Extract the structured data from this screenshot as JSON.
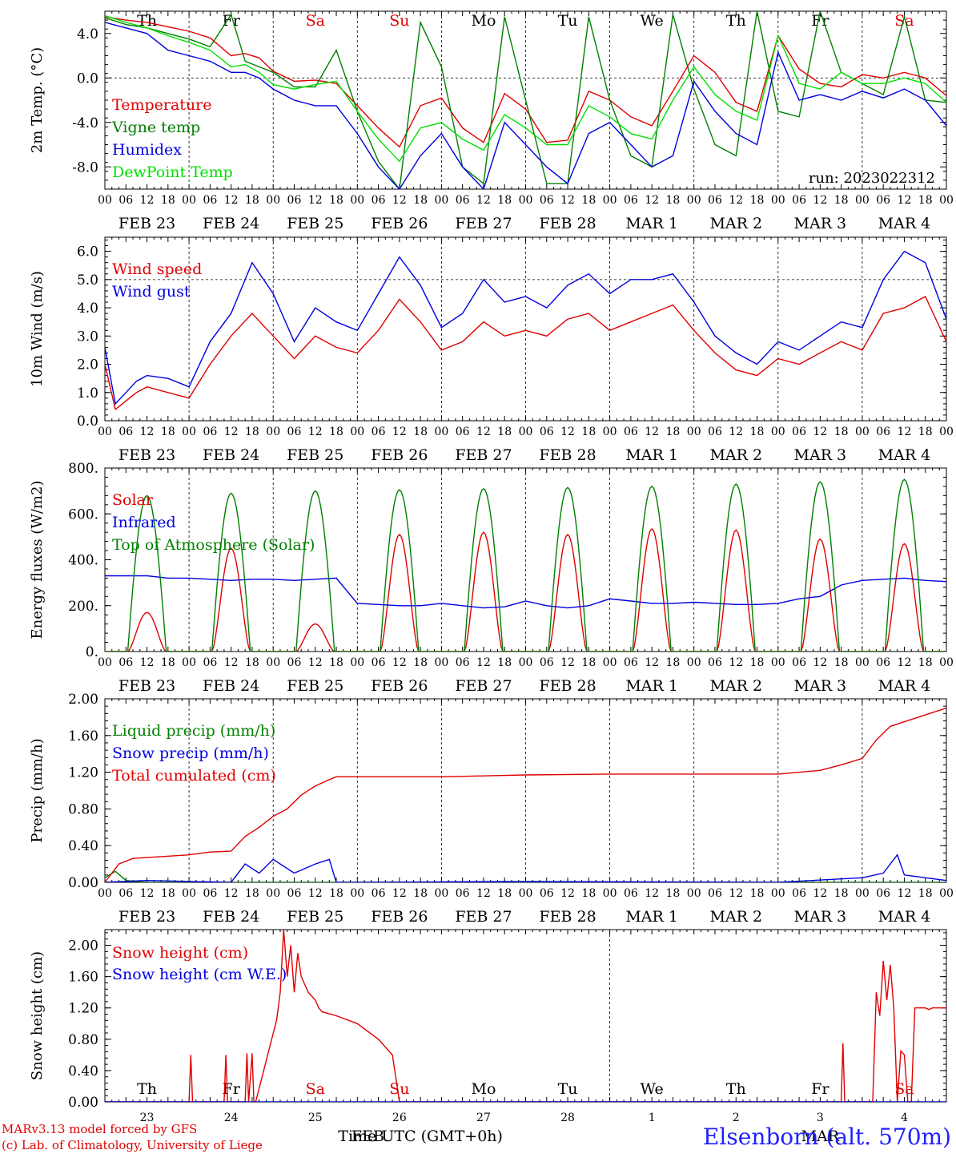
{
  "run_label": "run: 2023022312",
  "credits": {
    "line1": "MARv3.13 model forced by GFS",
    "line2": "(c) Lab. of Climatology, University of Liege"
  },
  "station": "Elsenborn (alt. 570m)",
  "bottom_axis": {
    "xlabel": "Time UTC (GMT+0h)",
    "month_feb": "FEB",
    "month_mar": "MAR",
    "day_numbers": [
      "23",
      "24",
      "25",
      "26",
      "27",
      "28",
      "1",
      "2",
      "3",
      "4"
    ]
  },
  "hour_ticks": [
    "00",
    "06",
    "12",
    "18"
  ],
  "day_labels": [
    "FEB 23",
    "FEB 24",
    "FEB 25",
    "FEB 26",
    "FEB 27",
    "FEB 28",
    "MAR  1",
    "MAR  2",
    "MAR  3",
    "MAR  4"
  ],
  "weekdays": [
    "Th",
    "Fr",
    "Sa",
    "Su",
    "Mo",
    "Tu",
    "We",
    "Th",
    "Fr",
    "Sa"
  ],
  "weekday_colors": [
    "#000000",
    "#000000",
    "#e00000",
    "#e00000",
    "#000000",
    "#000000",
    "#000000",
    "#000000",
    "#000000",
    "#e00000"
  ],
  "colors": {
    "red": "#e00000",
    "green": "#008000",
    "blue": "#0000e0",
    "light_green": "#00e000",
    "axis": "#000000"
  },
  "chart_data": [
    {
      "type": "line",
      "ylabel": "2m Temp. (°C)",
      "ylim": [
        -10,
        6
      ],
      "yticks": [
        4,
        0,
        -4,
        -8
      ],
      "ytick_labels": [
        "4.0",
        "0.0",
        "-4.0",
        "-8.0"
      ],
      "reference_line": 0,
      "x_unit_hours": 240,
      "series": [
        {
          "name": "Temperature",
          "color": "#e00000",
          "x": [
            0,
            6,
            12,
            18,
            24,
            30,
            36,
            40,
            44,
            48,
            54,
            60,
            66,
            72,
            78,
            84,
            90,
            96,
            102,
            108,
            114,
            120,
            126,
            132,
            138,
            144,
            150,
            156,
            162,
            168,
            174,
            180,
            186,
            192,
            198,
            204,
            210,
            216,
            222,
            228,
            234,
            240
          ],
          "y": [
            5.5,
            5.2,
            5,
            4.6,
            4.2,
            3.6,
            2,
            2.2,
            1.8,
            0.6,
            -0.3,
            -0.2,
            -0.5,
            -2.5,
            -4.5,
            -6.2,
            -2.5,
            -1.8,
            -4.5,
            -5.8,
            -1.4,
            -2.8,
            -5.8,
            -5.6,
            -1.2,
            -2,
            -3.5,
            -4.3,
            -1.2,
            2,
            0.5,
            -2.2,
            -3,
            3.8,
            0.8,
            -0.5,
            -0.8,
            0.3,
            0,
            0.5,
            0,
            -1.6
          ]
        },
        {
          "name": "Vigne temp",
          "color": "#008000",
          "x": [
            0,
            6,
            12,
            18,
            24,
            30,
            36,
            40,
            44,
            48,
            54,
            60,
            66,
            72,
            78,
            84,
            90,
            96,
            102,
            108,
            114,
            120,
            126,
            132,
            138,
            144,
            150,
            156,
            162,
            168,
            174,
            180,
            186,
            192,
            198,
            204,
            210,
            216,
            222,
            228,
            234,
            240
          ],
          "y": [
            5.4,
            4.8,
            4.5,
            4,
            3.5,
            2.8,
            5.7,
            1.5,
            1,
            0.5,
            -0.8,
            -0.8,
            2.5,
            -3,
            -7.5,
            -10,
            5,
            1,
            -8,
            -9.5,
            5.5,
            -2,
            -9.5,
            -9.5,
            5.5,
            -2,
            -7,
            -8,
            5.7,
            -1,
            -6,
            -7,
            6,
            -3,
            -3.5,
            6,
            0.5,
            -0.5,
            -1.5,
            5.5,
            -2,
            -2.2
          ]
        },
        {
          "name": "Humidex",
          "color": "#0000e0",
          "x": [
            0,
            6,
            12,
            18,
            24,
            30,
            36,
            40,
            44,
            48,
            54,
            60,
            66,
            72,
            78,
            84,
            90,
            96,
            102,
            108,
            114,
            120,
            126,
            132,
            138,
            144,
            150,
            156,
            162,
            168,
            174,
            180,
            186,
            192,
            198,
            204,
            210,
            216,
            222,
            228,
            234,
            240
          ],
          "y": [
            5,
            4.5,
            4,
            2.5,
            2,
            1.5,
            0.5,
            0.5,
            0,
            -1,
            -2,
            -2.5,
            -2.5,
            -5,
            -8,
            -10,
            -7,
            -5,
            -8,
            -10,
            -4,
            -6,
            -8,
            -9.5,
            -5,
            -4,
            -6,
            -8,
            -7,
            -0.3,
            -3,
            -5,
            -6,
            2.3,
            -2,
            -1.5,
            -2,
            -1.2,
            -1.8,
            -1,
            -2,
            -4.3
          ]
        },
        {
          "name": "DewPoint Temp",
          "color": "#00e000",
          "x": [
            0,
            6,
            12,
            18,
            24,
            30,
            36,
            40,
            44,
            48,
            54,
            60,
            66,
            72,
            78,
            84,
            90,
            96,
            102,
            108,
            114,
            120,
            126,
            132,
            138,
            144,
            150,
            156,
            162,
            168,
            174,
            180,
            186,
            192,
            198,
            204,
            210,
            216,
            222,
            228,
            234,
            240
          ],
          "y": [
            5.6,
            5,
            4.5,
            3.8,
            3.2,
            2.5,
            1,
            1.2,
            0.5,
            -0.6,
            -1,
            -0.6,
            -0.3,
            -3,
            -5.5,
            -7.5,
            -4.5,
            -4,
            -5.5,
            -6.5,
            -3.3,
            -4.5,
            -6,
            -6,
            -2.5,
            -3.5,
            -5,
            -5.5,
            -2,
            1,
            -1.5,
            -3,
            -3.8,
            3.8,
            -0.5,
            -1,
            0.5,
            -0.5,
            -0.5,
            0,
            -0.5,
            -2.2
          ]
        }
      ]
    },
    {
      "type": "line",
      "ylabel": "10m Wind (m/s)",
      "ylim": [
        0,
        6.5
      ],
      "yticks": [
        0,
        1,
        2,
        3,
        4,
        5,
        6
      ],
      "ytick_labels": [
        "0.0",
        "1.0",
        "2.0",
        "3.0",
        "4.0",
        "5.0",
        "6.0"
      ],
      "reference_line": 5,
      "series": [
        {
          "name": "Wind speed",
          "color": "#e00000",
          "x": [
            0,
            3,
            6,
            9,
            12,
            18,
            24,
            30,
            36,
            42,
            48,
            54,
            60,
            66,
            72,
            78,
            84,
            90,
            96,
            102,
            108,
            114,
            120,
            126,
            132,
            138,
            144,
            150,
            156,
            162,
            168,
            174,
            180,
            186,
            192,
            198,
            204,
            210,
            216,
            222,
            228,
            234,
            240
          ],
          "y": [
            2,
            0.4,
            0.7,
            1,
            1.2,
            1,
            0.8,
            2,
            3,
            3.8,
            3,
            2.2,
            3,
            2.6,
            2.4,
            3.2,
            4.3,
            3.5,
            2.5,
            2.8,
            3.5,
            3,
            3.2,
            3,
            3.6,
            3.8,
            3.2,
            3.5,
            3.8,
            4.1,
            3.2,
            2.4,
            1.8,
            1.6,
            2.2,
            2,
            2.4,
            2.8,
            2.5,
            3.8,
            4,
            4.4,
            2.8
          ]
        },
        {
          "name": "Wind gust",
          "color": "#0000e0",
          "x": [
            0,
            3,
            6,
            9,
            12,
            18,
            24,
            30,
            36,
            42,
            48,
            54,
            60,
            66,
            72,
            78,
            84,
            90,
            96,
            102,
            108,
            114,
            120,
            126,
            132,
            138,
            144,
            150,
            156,
            162,
            168,
            174,
            180,
            186,
            192,
            198,
            204,
            210,
            216,
            222,
            228,
            234,
            240
          ],
          "y": [
            2.6,
            0.6,
            1,
            1.4,
            1.6,
            1.5,
            1.2,
            2.8,
            3.8,
            5.6,
            4.5,
            2.8,
            4,
            3.5,
            3.2,
            4.5,
            5.8,
            4.8,
            3.3,
            3.8,
            5,
            4.2,
            4.4,
            4,
            4.8,
            5.2,
            4.5,
            5,
            5,
            5.2,
            4.2,
            3,
            2.4,
            2,
            2.8,
            2.5,
            3,
            3.5,
            3.3,
            5,
            6,
            5.6,
            3.6
          ]
        }
      ]
    },
    {
      "type": "line",
      "ylabel": "Energy fluxes (W/m2)",
      "ylim": [
        0,
        800
      ],
      "yticks": [
        0,
        200,
        400,
        600,
        800
      ],
      "ytick_labels": [
        "0.",
        "200.",
        "400.",
        "600.",
        "800."
      ],
      "series": [
        {
          "name": "Solar",
          "color": "#e00000",
          "day_peaks": [
            170,
            450,
            120,
            510,
            520,
            510,
            535,
            530,
            490,
            470
          ]
        },
        {
          "name": "Infrared",
          "color": "#0000e0",
          "x": [
            0,
            6,
            12,
            18,
            24,
            30,
            36,
            42,
            48,
            54,
            60,
            66,
            72,
            78,
            84,
            90,
            96,
            102,
            108,
            114,
            120,
            126,
            132,
            138,
            144,
            150,
            156,
            162,
            168,
            174,
            180,
            186,
            192,
            198,
            204,
            210,
            216,
            222,
            228,
            234,
            240
          ],
          "y": [
            330,
            330,
            330,
            320,
            320,
            315,
            310,
            315,
            315,
            310,
            315,
            320,
            210,
            205,
            200,
            200,
            210,
            200,
            190,
            195,
            220,
            200,
            190,
            200,
            230,
            220,
            210,
            210,
            215,
            210,
            205,
            205,
            210,
            230,
            240,
            290,
            310,
            315,
            320,
            310,
            305
          ]
        },
        {
          "name": "Top of Atmosphere (Solar)",
          "color": "#008000",
          "day_peaks": [
            680,
            690,
            700,
            705,
            710,
            715,
            720,
            730,
            740,
            750
          ]
        }
      ]
    },
    {
      "type": "line",
      "ylabel": "Precip (mm/h)",
      "ylim": [
        0,
        2
      ],
      "yticks": [
        0,
        0.4,
        0.8,
        1.2,
        1.6,
        2.0
      ],
      "ytick_labels": [
        "0.00",
        "0.40",
        "0.80",
        "1.20",
        "1.60",
        "2.00"
      ],
      "series": [
        {
          "name": "Liquid precip (mm/h)",
          "color": "#008000",
          "x": [
            0,
            3,
            6,
            12,
            24,
            48,
            240
          ],
          "y": [
            0.05,
            0.12,
            0.02,
            0,
            0,
            0,
            0
          ]
        },
        {
          "name": "Snow precip (mm/h)",
          "color": "#0000e0",
          "x": [
            0,
            12,
            36,
            40,
            44,
            48,
            54,
            60,
            64,
            66,
            72,
            120,
            192,
            216,
            222,
            226,
            228,
            234,
            240
          ],
          "y": [
            0,
            0.02,
            0,
            0.2,
            0.1,
            0.25,
            0.1,
            0.2,
            0.25,
            0,
            0,
            0.01,
            0,
            0.05,
            0.1,
            0.3,
            0.08,
            0.05,
            0.02
          ]
        },
        {
          "name": "Total cumulated (cm)",
          "color": "#e00000",
          "x": [
            0,
            4,
            8,
            12,
            24,
            30,
            36,
            40,
            44,
            48,
            52,
            56,
            60,
            64,
            66,
            72,
            96,
            120,
            144,
            168,
            192,
            204,
            210,
            216,
            220,
            224,
            228,
            232,
            236,
            240
          ],
          "y": [
            0,
            0.2,
            0.26,
            0.27,
            0.3,
            0.33,
            0.34,
            0.5,
            0.6,
            0.72,
            0.8,
            0.95,
            1.05,
            1.12,
            1.15,
            1.15,
            1.15,
            1.17,
            1.18,
            1.18,
            1.18,
            1.22,
            1.28,
            1.35,
            1.55,
            1.7,
            1.75,
            1.8,
            1.85,
            1.9
          ]
        }
      ]
    },
    {
      "type": "line",
      "ylabel": "Snow height (cm)",
      "ylim": [
        0,
        2.2
      ],
      "yticks": [
        0,
        0.4,
        0.8,
        1.2,
        1.6,
        2.0
      ],
      "ytick_labels": [
        "0.00",
        "0.40",
        "0.80",
        "1.20",
        "1.60",
        "2.00"
      ],
      "series": [
        {
          "name": "Snow height (cm)",
          "color": "#e00000",
          "x": [
            0,
            24,
            24.5,
            25,
            34,
            34.5,
            35,
            40,
            40.5,
            41,
            42,
            42.5,
            43,
            49,
            50,
            51,
            52,
            53,
            54,
            55,
            56,
            57,
            58,
            59,
            60,
            61,
            62,
            66,
            72,
            78,
            82,
            84,
            84.5,
            85,
            210,
            210.5,
            211,
            212,
            212.5,
            213,
            219,
            220,
            221,
            222,
            223,
            224,
            225,
            226,
            227,
            228,
            229,
            230,
            231,
            232,
            233,
            234,
            235,
            236,
            237,
            237.5,
            238,
            239,
            240
          ],
          "y": [
            0,
            0,
            0.6,
            0,
            0,
            0.6,
            0,
            0,
            0.62,
            0,
            0.62,
            0,
            0,
            1.05,
            1.4,
            2.2,
            1.6,
            2.0,
            1.4,
            1.9,
            1.6,
            1.5,
            1.4,
            1.35,
            1.3,
            1.2,
            1.15,
            1.1,
            1.0,
            0.8,
            0.6,
            0,
            0,
            0,
            0,
            0.75,
            0,
            0,
            0,
            0,
            0,
            1.4,
            1.1,
            1.8,
            1.3,
            1.75,
            1.2,
            0,
            0.65,
            0.6,
            0,
            0,
            1.2,
            1.2,
            1.2,
            1.2,
            1.18,
            1.2,
            1.2,
            1.2,
            1.2,
            1.2,
            1.2
          ]
        },
        {
          "name": "Snow height (cm W.E.)",
          "color": "#0000e0",
          "x": [
            0,
            240
          ],
          "y": [
            0,
            0
          ]
        }
      ]
    }
  ]
}
